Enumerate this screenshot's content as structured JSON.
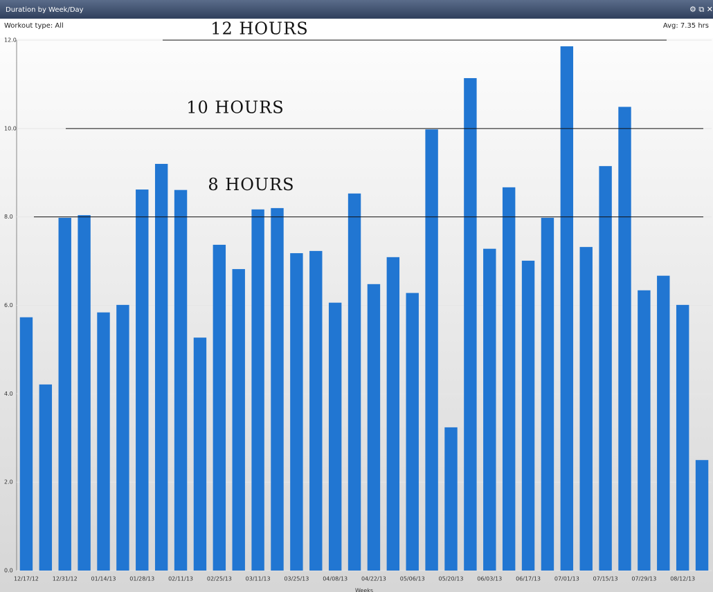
{
  "header": {
    "title": "Duration by Week/Day",
    "filter": "Workout type: All",
    "average": "Avg: 7.35 hrs"
  },
  "chart_data": {
    "type": "bar",
    "x_label": "Weeks",
    "color": "#2176d2",
    "grid": true,
    "categories": [
      "12/17/12",
      null,
      "12/31/12",
      null,
      "01/14/13",
      null,
      "01/28/13",
      null,
      "02/11/13",
      null,
      "02/25/13",
      null,
      "03/11/13",
      null,
      "03/25/13",
      null,
      "04/08/13",
      null,
      "04/22/13",
      null,
      "05/06/13",
      null,
      "05/20/13",
      null,
      "06/03/13",
      null,
      "06/17/13",
      null,
      "07/01/13",
      null,
      "07/15/13",
      null,
      "07/29/13",
      null,
      "08/12/13",
      null
    ],
    "values": [
      5.73,
      4.21,
      7.98,
      8.04,
      5.84,
      6.01,
      8.62,
      9.2,
      8.61,
      5.27,
      7.37,
      6.82,
      8.17,
      8.2,
      7.18,
      7.23,
      6.06,
      8.53,
      6.48,
      7.09,
      6.28,
      9.98,
      3.24,
      11.14,
      7.28,
      8.67,
      7.01,
      7.98,
      11.86,
      7.32,
      9.15,
      10.49,
      6.34,
      6.67,
      6.01,
      2.5
    ],
    "ylim": [
      0,
      12
    ],
    "yticks": [
      {
        "value": 0,
        "label": "0.0"
      },
      {
        "value": 2,
        "label": "2.0"
      },
      {
        "value": 4,
        "label": "4.0"
      },
      {
        "value": 6,
        "label": "6.0"
      },
      {
        "value": 8,
        "label": "8.0"
      },
      {
        "value": 10,
        "label": "10.0"
      },
      {
        "value": 12,
        "label": "12.0"
      }
    ],
    "annotations": [
      {
        "text": "12 HOURS",
        "value": 12
      },
      {
        "text": "10 HOURS",
        "value": 10
      },
      {
        "text": "8 HOURS",
        "value": 8
      }
    ]
  }
}
